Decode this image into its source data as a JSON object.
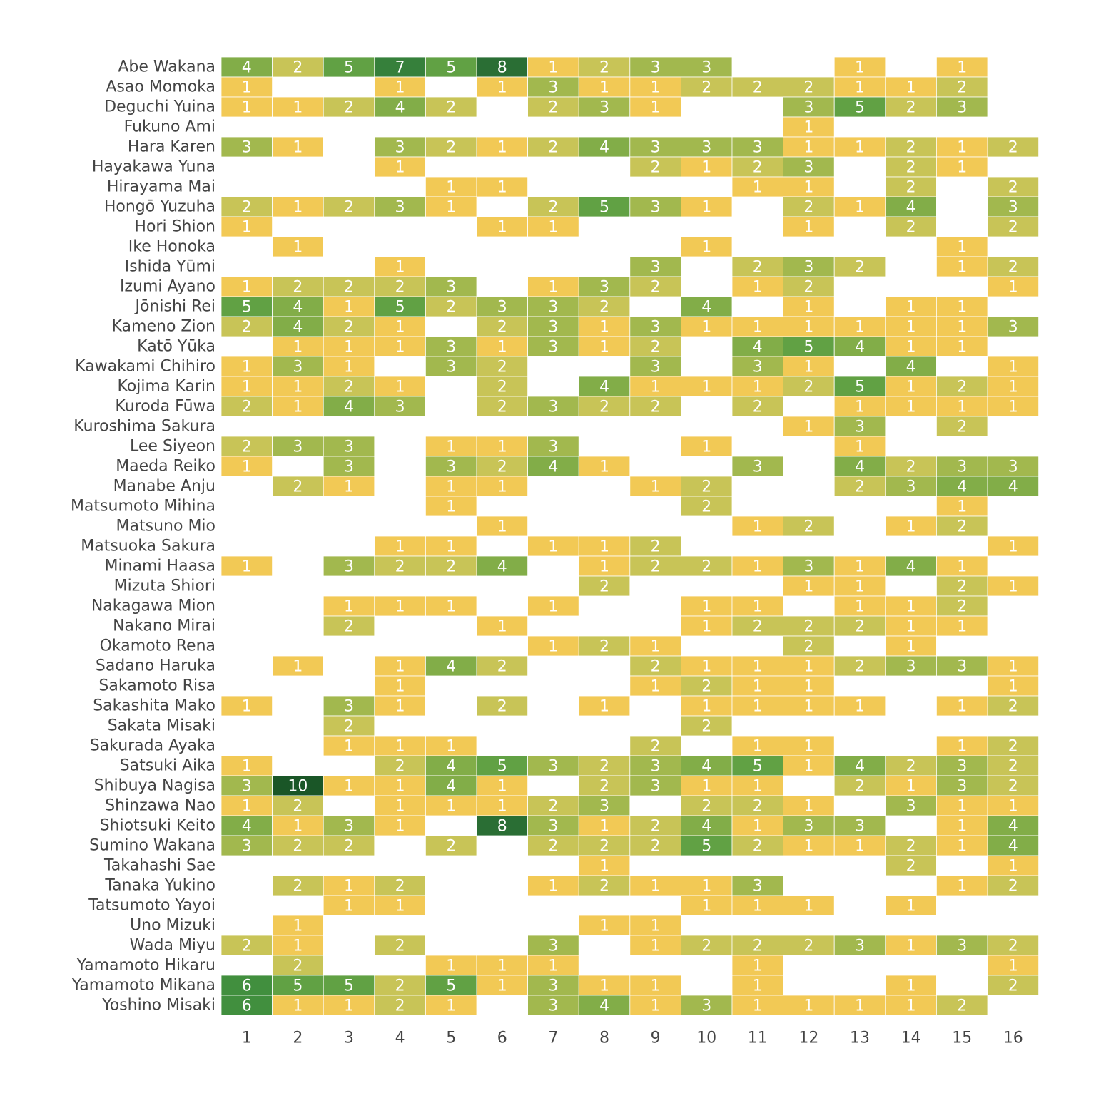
{
  "chart_data": {
    "type": "heatmap",
    "title": "",
    "xlabel": "",
    "ylabel": "",
    "x_categories": [
      "1",
      "2",
      "3",
      "4",
      "5",
      "6",
      "7",
      "8",
      "9",
      "10",
      "11",
      "12",
      "13",
      "14",
      "15",
      "16"
    ],
    "y_categories": [
      "Abe Wakana",
      "Asao Momoka",
      "Deguchi Yuina",
      "Fukuno Ami",
      "Hara Karen",
      "Hayakawa Yuna",
      "Hirayama Mai",
      "Hongō Yuzuha",
      "Hori Shion",
      "Ike Honoka",
      "Ishida Yūmi",
      "Izumi Ayano",
      "Jōnishi Rei",
      "Kameno Zion",
      "Katō Yūka",
      "Kawakami Chihiro",
      "Kojima Karin",
      "Kuroda Fūwa",
      "Kuroshima Sakura",
      "Lee Siyeon",
      "Maeda Reiko",
      "Manabe Anju",
      "Matsumoto Mihina",
      "Matsuno Mio",
      "Matsuoka Sakura",
      "Minami Haasa",
      "Mizuta Shiori",
      "Nakagawa Mion",
      "Nakano Mirai",
      "Okamoto Rena",
      "Sadano Haruka",
      "Sakamoto Risa",
      "Sakashita Mako",
      "Sakata Misaki",
      "Sakurada Ayaka",
      "Satsuki Aika",
      "Shibuya Nagisa",
      "Shinzawa Nao",
      "Shiotsuki Keito",
      "Sumino Wakana",
      "Takahashi Sae",
      "Tanaka Yukino",
      "Tatsumoto Yayoi",
      "Uno Mizuki",
      "Wada Miyu",
      "Yamamoto Hikaru",
      "Yamamoto Mikana",
      "Yoshino Misaki"
    ],
    "values": [
      [
        4,
        2,
        5,
        7,
        5,
        8,
        1,
        2,
        3,
        3,
        null,
        null,
        1,
        null,
        1,
        null
      ],
      [
        1,
        null,
        null,
        1,
        null,
        1,
        3,
        1,
        1,
        2,
        2,
        2,
        1,
        1,
        2,
        null
      ],
      [
        1,
        1,
        2,
        4,
        2,
        null,
        2,
        3,
        1,
        null,
        null,
        3,
        5,
        2,
        3,
        null
      ],
      [
        null,
        null,
        null,
        null,
        null,
        null,
        null,
        null,
        null,
        null,
        null,
        1,
        null,
        null,
        null,
        null
      ],
      [
        3,
        1,
        null,
        3,
        2,
        1,
        2,
        4,
        3,
        3,
        3,
        1,
        1,
        2,
        1,
        2
      ],
      [
        null,
        null,
        null,
        1,
        null,
        null,
        null,
        null,
        2,
        1,
        2,
        3,
        null,
        2,
        1,
        null
      ],
      [
        null,
        null,
        null,
        null,
        1,
        1,
        null,
        null,
        null,
        null,
        1,
        1,
        null,
        2,
        null,
        2
      ],
      [
        2,
        1,
        2,
        3,
        1,
        null,
        2,
        5,
        3,
        1,
        null,
        2,
        1,
        4,
        null,
        3
      ],
      [
        1,
        null,
        null,
        null,
        null,
        1,
        1,
        null,
        null,
        null,
        null,
        1,
        null,
        2,
        null,
        2
      ],
      [
        null,
        1,
        null,
        null,
        null,
        null,
        null,
        null,
        null,
        1,
        null,
        null,
        null,
        null,
        1,
        null
      ],
      [
        null,
        null,
        null,
        1,
        null,
        null,
        null,
        null,
        3,
        null,
        2,
        3,
        2,
        null,
        1,
        2
      ],
      [
        1,
        2,
        2,
        2,
        3,
        null,
        1,
        3,
        2,
        null,
        1,
        2,
        null,
        null,
        null,
        1
      ],
      [
        5,
        4,
        1,
        5,
        2,
        3,
        3,
        2,
        null,
        4,
        null,
        1,
        null,
        1,
        1,
        null
      ],
      [
        2,
        4,
        2,
        1,
        null,
        2,
        3,
        1,
        3,
        1,
        1,
        1,
        1,
        1,
        1,
        3
      ],
      [
        null,
        1,
        1,
        1,
        3,
        1,
        3,
        1,
        2,
        null,
        4,
        5,
        4,
        1,
        1,
        null
      ],
      [
        1,
        3,
        1,
        null,
        3,
        2,
        null,
        null,
        3,
        null,
        3,
        1,
        null,
        4,
        null,
        1
      ],
      [
        1,
        1,
        2,
        1,
        null,
        2,
        null,
        4,
        1,
        1,
        1,
        2,
        5,
        1,
        2,
        1
      ],
      [
        2,
        1,
        4,
        3,
        null,
        2,
        3,
        2,
        2,
        null,
        2,
        null,
        1,
        1,
        1,
        1
      ],
      [
        null,
        null,
        null,
        null,
        null,
        null,
        null,
        null,
        null,
        null,
        null,
        1,
        3,
        null,
        2,
        null
      ],
      [
        2,
        3,
        3,
        null,
        1,
        1,
        3,
        null,
        null,
        1,
        null,
        null,
        1,
        null,
        null,
        null
      ],
      [
        1,
        null,
        3,
        null,
        3,
        2,
        4,
        1,
        null,
        null,
        3,
        null,
        4,
        2,
        3,
        3
      ],
      [
        null,
        2,
        1,
        null,
        1,
        1,
        null,
        null,
        1,
        2,
        null,
        null,
        2,
        3,
        4,
        4
      ],
      [
        null,
        null,
        null,
        null,
        1,
        null,
        null,
        null,
        null,
        2,
        null,
        null,
        null,
        null,
        1,
        null
      ],
      [
        null,
        null,
        null,
        null,
        null,
        1,
        null,
        null,
        null,
        null,
        1,
        2,
        null,
        1,
        2,
        null
      ],
      [
        null,
        null,
        null,
        1,
        1,
        null,
        1,
        1,
        2,
        null,
        null,
        null,
        null,
        null,
        null,
        1
      ],
      [
        1,
        null,
        3,
        2,
        2,
        4,
        null,
        1,
        2,
        2,
        1,
        3,
        1,
        4,
        1,
        null
      ],
      [
        null,
        null,
        null,
        null,
        null,
        null,
        null,
        2,
        null,
        null,
        null,
        1,
        1,
        null,
        2,
        1
      ],
      [
        null,
        null,
        1,
        1,
        1,
        null,
        1,
        null,
        null,
        1,
        1,
        null,
        1,
        1,
        2,
        null
      ],
      [
        null,
        null,
        2,
        null,
        null,
        1,
        null,
        null,
        null,
        1,
        2,
        2,
        2,
        1,
        1,
        null
      ],
      [
        null,
        null,
        null,
        null,
        null,
        null,
        1,
        2,
        1,
        null,
        null,
        2,
        null,
        1,
        null,
        null
      ],
      [
        null,
        1,
        null,
        1,
        4,
        2,
        null,
        null,
        2,
        1,
        1,
        1,
        2,
        3,
        3,
        1
      ],
      [
        null,
        null,
        null,
        1,
        null,
        null,
        null,
        null,
        1,
        2,
        1,
        1,
        null,
        null,
        null,
        1
      ],
      [
        1,
        null,
        3,
        1,
        null,
        2,
        null,
        1,
        null,
        1,
        1,
        1,
        1,
        null,
        1,
        2
      ],
      [
        null,
        null,
        2,
        null,
        null,
        null,
        null,
        null,
        null,
        2,
        null,
        null,
        null,
        null,
        null,
        null
      ],
      [
        null,
        null,
        1,
        1,
        1,
        null,
        null,
        null,
        2,
        null,
        1,
        1,
        null,
        null,
        1,
        2
      ],
      [
        1,
        null,
        null,
        2,
        4,
        5,
        3,
        2,
        3,
        4,
        5,
        1,
        4,
        2,
        3,
        2
      ],
      [
        3,
        10,
        1,
        1,
        4,
        1,
        null,
        2,
        3,
        1,
        1,
        null,
        2,
        1,
        3,
        2
      ],
      [
        1,
        2,
        null,
        1,
        1,
        1,
        2,
        3,
        null,
        2,
        2,
        1,
        null,
        3,
        1,
        1
      ],
      [
        4,
        1,
        3,
        1,
        null,
        8,
        3,
        1,
        2,
        4,
        1,
        3,
        3,
        null,
        1,
        4
      ],
      [
        3,
        2,
        2,
        null,
        2,
        null,
        2,
        2,
        2,
        5,
        2,
        1,
        1,
        2,
        1,
        4
      ],
      [
        null,
        null,
        null,
        null,
        null,
        null,
        null,
        1,
        null,
        null,
        null,
        null,
        null,
        2,
        null,
        1
      ],
      [
        null,
        2,
        1,
        2,
        null,
        null,
        1,
        2,
        1,
        1,
        3,
        null,
        null,
        null,
        1,
        2
      ],
      [
        null,
        null,
        1,
        1,
        null,
        null,
        null,
        null,
        null,
        1,
        1,
        1,
        null,
        1,
        null,
        null
      ],
      [
        null,
        1,
        null,
        null,
        null,
        null,
        null,
        1,
        1,
        null,
        null,
        null,
        null,
        null,
        null,
        null
      ],
      [
        2,
        1,
        null,
        2,
        null,
        null,
        3,
        null,
        1,
        2,
        2,
        2,
        3,
        1,
        3,
        2
      ],
      [
        null,
        2,
        null,
        null,
        1,
        1,
        1,
        null,
        null,
        null,
        1,
        null,
        null,
        null,
        null,
        1
      ],
      [
        6,
        5,
        5,
        2,
        5,
        1,
        3,
        1,
        1,
        null,
        1,
        null,
        null,
        1,
        null,
        2
      ],
      [
        6,
        1,
        1,
        2,
        1,
        null,
        3,
        4,
        1,
        3,
        1,
        1,
        1,
        1,
        2,
        null
      ]
    ],
    "color_scale": {
      "1": "#f2c955",
      "2": "#c8c457",
      "3": "#a2b84e",
      "4": "#82ad48",
      "5": "#61a144",
      "6": "#418f3e",
      "7": "#36803b",
      "8": "#2a6e34",
      "10": "#1a5627"
    },
    "text_color": "#ffffff",
    "label_color": "#444444",
    "grid": false,
    "legend": "none"
  }
}
